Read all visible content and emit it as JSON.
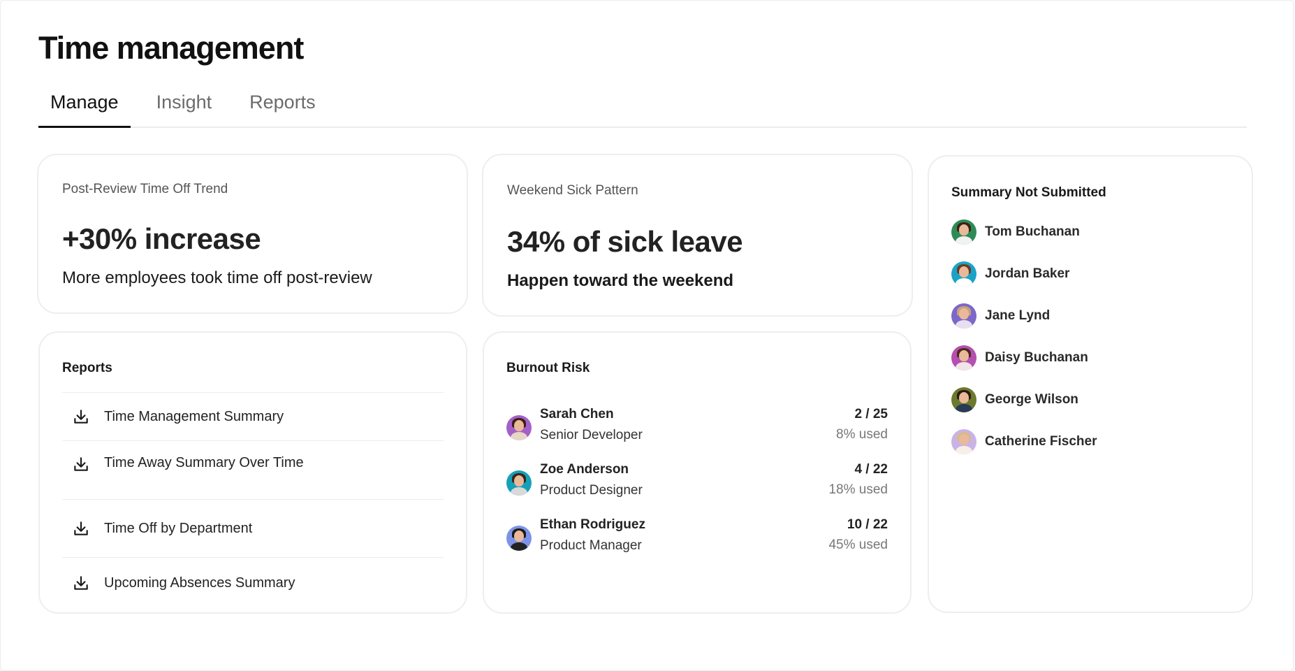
{
  "page_title": "Time management",
  "tabs": [
    {
      "label": "Manage",
      "active": true
    },
    {
      "label": "Insight",
      "active": false
    },
    {
      "label": "Reports",
      "active": false
    }
  ],
  "trend_card": {
    "label": "Post-Review Time Off Trend",
    "value": "+30% increase",
    "description": "More employees took time off post-review"
  },
  "sick_card": {
    "label": "Weekend Sick Pattern",
    "value": "34% of sick leave",
    "description": "Happen toward the weekend"
  },
  "summary_card": {
    "title": "Summary Not Submitted",
    "people": [
      {
        "name": "Tom Buchanan",
        "avatar_bg": "#2e8b57",
        "hair": "#3b2314",
        "shirt": "#f2f2f2"
      },
      {
        "name": "Jordan Baker",
        "avatar_bg": "#1aa3c7",
        "hair": "#6b3a1f",
        "shirt": "#ffffff"
      },
      {
        "name": "Jane Lynd",
        "avatar_bg": "#7b68c8",
        "hair": "#c9a27a",
        "shirt": "#e8e0f0"
      },
      {
        "name": "Daisy Buchanan",
        "avatar_bg": "#b54fb0",
        "hair": "#4a2a1a",
        "shirt": "#f0e6e6"
      },
      {
        "name": "George Wilson",
        "avatar_bg": "#6b7a2e",
        "hair": "#2a1a10",
        "shirt": "#2b3a55"
      },
      {
        "name": "Catherine Fischer",
        "avatar_bg": "#c9b3e6",
        "hair": "#d8b98f",
        "shirt": "#f5f0e8"
      }
    ]
  },
  "reports_card": {
    "title": "Reports",
    "download_icon": "download-icon",
    "items": [
      {
        "label": "Time Management Summary"
      },
      {
        "label": "Time Away Summary Over Time"
      },
      {
        "label": "Time Off by Department"
      },
      {
        "label": "Upcoming Absences Summary"
      }
    ]
  },
  "burnout_card": {
    "title": "Burnout Risk",
    "rows": [
      {
        "name": "Sarah Chen",
        "role": "Senior Developer",
        "count": "2 / 25",
        "used": "8% used",
        "avatar_bg": "#a55fc9",
        "hair": "#3a1f14",
        "shirt": "#e6d6c6"
      },
      {
        "name": "Zoe Anderson",
        "role": "Product Designer",
        "count": "4 / 22",
        "used": "18% used",
        "avatar_bg": "#16a0b8",
        "hair": "#3a2618",
        "shirt": "#d9d9d9"
      },
      {
        "name": "Ethan Rodriguez",
        "role": "Product Manager",
        "count": "10 / 22",
        "used": "45% used",
        "avatar_bg": "#7d93e8",
        "hair": "#1a1a1a",
        "shirt": "#222222"
      }
    ]
  }
}
